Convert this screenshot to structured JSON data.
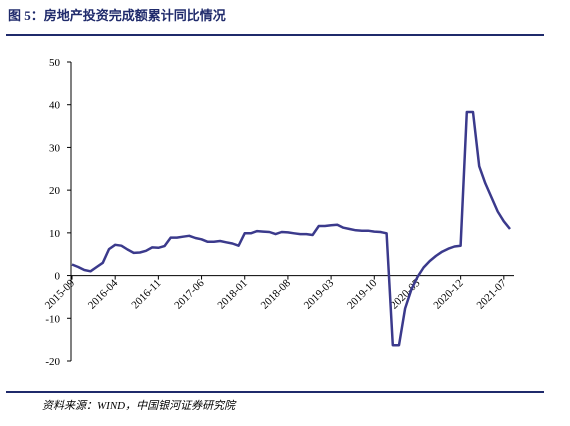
{
  "chart_data": {
    "type": "line",
    "title": "图 5：房地产投资完成额累计同比情况",
    "categories": [
      "2015-09",
      null,
      null,
      null,
      null,
      null,
      null,
      "2016-04",
      null,
      null,
      null,
      null,
      null,
      null,
      "2016-11",
      null,
      null,
      null,
      null,
      null,
      null,
      "2017-06",
      null,
      null,
      null,
      null,
      null,
      null,
      "2018-01",
      null,
      null,
      null,
      null,
      null,
      null,
      "2018-08",
      null,
      null,
      null,
      null,
      null,
      null,
      "2019-03",
      null,
      null,
      null,
      null,
      null,
      null,
      "2019-10",
      null,
      null,
      null,
      null,
      null,
      null,
      "2020-05",
      null,
      null,
      null,
      null,
      null,
      null,
      "2020-12",
      null,
      null,
      null,
      null,
      null,
      null,
      "2021-07",
      null
    ],
    "series": [
      {
        "color": "#3b3a8c",
        "values": [
          2.6,
          2.0,
          1.3,
          1.0,
          2.0,
          3.0,
          6.2,
          7.2,
          7.0,
          6.1,
          5.3,
          5.4,
          5.8,
          6.6,
          6.5,
          6.9,
          8.9,
          8.9,
          9.1,
          9.3,
          8.8,
          8.5,
          7.9,
          7.9,
          8.1,
          7.8,
          7.5,
          7.0,
          9.9,
          9.9,
          10.4,
          10.3,
          10.2,
          9.7,
          10.2,
          10.1,
          9.9,
          9.7,
          9.7,
          9.5,
          11.6,
          11.6,
          11.8,
          11.9,
          11.2,
          10.9,
          10.6,
          10.5,
          10.5,
          10.3,
          10.2,
          9.9,
          -16.3,
          -16.3,
          -7.7,
          -3.3,
          -0.3,
          1.9,
          3.4,
          4.6,
          5.6,
          6.3,
          6.8,
          7.0,
          38.3,
          38.3,
          25.6,
          21.6,
          18.3,
          15.0,
          12.7,
          10.9
        ]
      }
    ],
    "ylim": [
      -20,
      50
    ],
    "yticks": [
      -20,
      -10,
      0,
      10,
      20,
      30,
      40,
      50
    ]
  },
  "source": "资料来源：WIND，中国银河证券研究院"
}
